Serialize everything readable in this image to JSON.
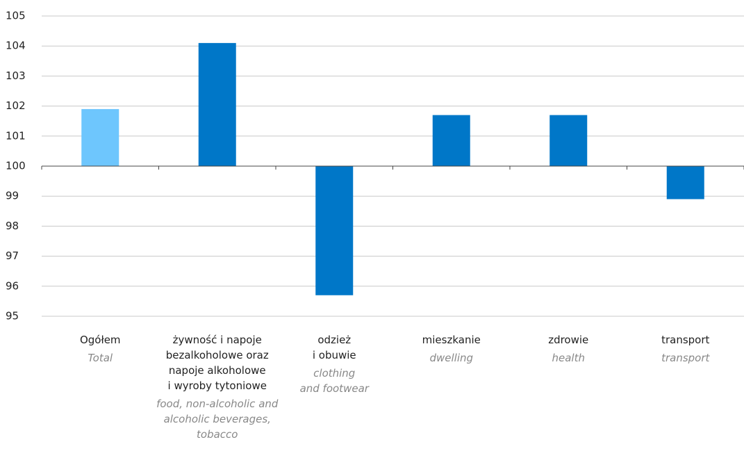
{
  "chart_data": {
    "type": "bar",
    "categories": [
      "Ogółem",
      "żywność i napoje\nbezalkoholowe oraz\nnapoje alkoholowe\ni wyroby tytoniowe",
      "odzież\ni obuwie",
      "mieszkanie",
      "zdrowie",
      "transport"
    ],
    "categories_en": [
      "Total",
      "food, non-alcoholic and\nalcoholic beverages,\ntobacco",
      "clothing\nand footwear",
      "dwelling",
      "health",
      "transport"
    ],
    "values": [
      101.9,
      104.1,
      95.7,
      101.7,
      101.7,
      98.9
    ],
    "colors": [
      "#6ec6fd",
      "#0077c8",
      "#0077c8",
      "#0077c8",
      "#0077c8",
      "#0077c8"
    ],
    "baseline": 100,
    "ylim": [
      95,
      105
    ],
    "yticks": [
      95,
      96,
      97,
      98,
      99,
      100,
      101,
      102,
      103,
      104,
      105
    ],
    "grid": true
  }
}
